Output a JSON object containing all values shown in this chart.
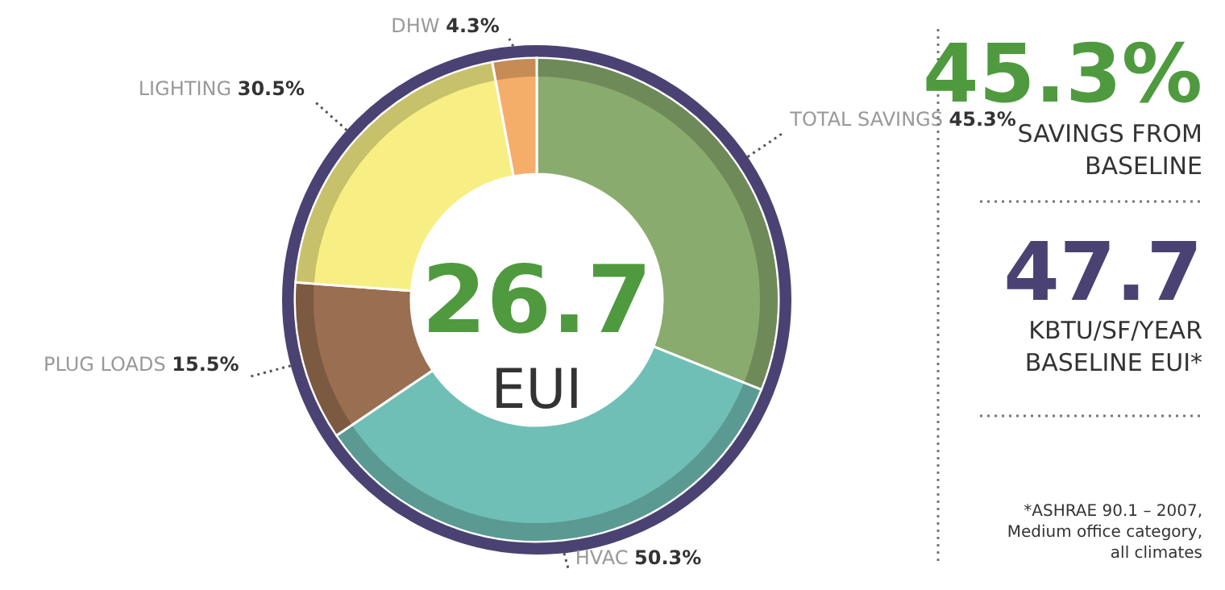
{
  "chart_data": {
    "type": "donut",
    "categories": [
      "TOTAL SAVINGS",
      "HVAC",
      "PLUG LOADS",
      "LIGHTING",
      "DHW"
    ],
    "values": [
      45.3,
      50.3,
      15.5,
      30.5,
      4.3
    ],
    "colors": [
      "#8aab6e",
      "#70bfb6",
      "#9a6e50",
      "#f8ef84",
      "#f5ad6a"
    ],
    "value_labels": [
      "45.3%",
      "50.3%",
      "15.5%",
      "30.5%",
      "4.3%"
    ],
    "annotations": [
      "26.7",
      "EUI",
      "45.3%",
      "SAVINGS FROM",
      "BASELINE",
      "47.7",
      "KBTU/SF/YEAR",
      "BASELINE EUI*",
      "*ASHRAE 90.1 – 2007,",
      "Medium office category,",
      "all climates"
    ]
  }
}
